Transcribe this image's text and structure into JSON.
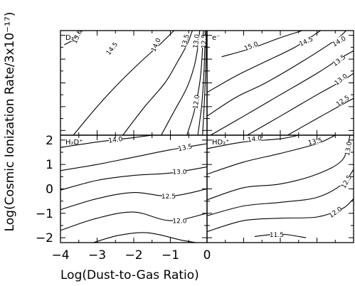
{
  "chart_data": {
    "type": "contour",
    "xlabel": "Log(Dust-to-Gas Ratio)",
    "ylabel": "Log(Cosmic Ionization Rate/3x10⁻¹⁷)",
    "xlim": [
      -4,
      0
    ],
    "ylim": [
      -2.2,
      2.2
    ],
    "xticks": [
      "−4",
      "−3",
      "−2",
      "−1",
      "0"
    ],
    "yticks": [
      "−2",
      "−1",
      "0",
      "1",
      "2"
    ],
    "layout": "2x2 grid, shared axes",
    "panels": [
      {
        "id": "D3plus",
        "position": "top-left",
        "species_label": "D₃⁺",
        "contours": [
          {
            "level": "15.0",
            "points": [
              [
                -3.9,
                1.6
              ],
              [
                -3.6,
                1.85
              ],
              [
                -3.4,
                2.2
              ]
            ],
            "label_at": [
              -3.55,
              1.95
            ],
            "label_angle": -65
          },
          {
            "level": "14.5",
            "points": [
              [
                -3.65,
                -2.2
              ],
              [
                -3.0,
                -1.0
              ],
              [
                -2.4,
                0.0
              ],
              [
                -1.8,
                0.9
              ],
              [
                -1.3,
                1.6
              ],
              [
                -0.9,
                2.2
              ]
            ],
            "label_at": [
              -2.6,
              1.45
            ],
            "label_angle": -52
          },
          {
            "level": "14.0",
            "points": [
              [
                -2.3,
                -2.2
              ],
              [
                -1.7,
                -1.0
              ],
              [
                -1.15,
                0.0
              ],
              [
                -0.8,
                0.9
              ],
              [
                -0.55,
                1.6
              ],
              [
                -0.4,
                2.2
              ]
            ],
            "label_at": [
              -1.4,
              1.6
            ],
            "label_angle": -65
          },
          {
            "level": "13.5",
            "points": [
              [
                -1.25,
                -2.2
              ],
              [
                -0.9,
                -1.2
              ],
              [
                -0.55,
                -0.2
              ],
              [
                -0.35,
                0.7
              ],
              [
                -0.25,
                1.5
              ],
              [
                -0.2,
                2.2
              ]
            ],
            "label_at": [
              -0.6,
              1.75
            ],
            "label_angle": -75
          },
          {
            "level": "13.0",
            "points": [
              [
                -0.55,
                -2.2
              ],
              [
                -0.35,
                -1.2
              ],
              [
                -0.2,
                0.0
              ],
              [
                -0.14,
                1.0
              ],
              [
                -0.1,
                2.2
              ]
            ],
            "label_at": [
              -0.3,
              1.75
            ],
            "label_angle": -82
          },
          {
            "level": "12.5",
            "points": [
              [
                -0.25,
                -2.2
              ],
              [
                -0.15,
                -1.0
              ],
              [
                -0.1,
                0.0
              ],
              [
                -0.07,
                1.0
              ],
              [
                -0.05,
                2.2
              ]
            ],
            "label_at": [
              -0.09,
              1.75
            ],
            "label_angle": -88
          },
          {
            "level": "12.0",
            "points": [
              [
                -0.12,
                -2.2
              ],
              [
                -0.08,
                -1.0
              ],
              [
                -0.05,
                0.0
              ],
              [
                -0.03,
                1.0
              ],
              [
                -0.02,
                2.2
              ]
            ],
            "label_at": [
              -0.3,
              -0.8
            ],
            "label_angle": -82
          }
        ]
      },
      {
        "id": "electron",
        "position": "top-right",
        "species_label": "e⁻",
        "contours": [
          {
            "level": "15.0",
            "points": [
              [
                -3.6,
                1.1
              ],
              [
                -2.8,
                1.45
              ],
              [
                -2.0,
                1.9
              ],
              [
                -1.4,
                2.2
              ]
            ],
            "label_at": [
              -2.8,
              1.55
            ],
            "label_angle": -22
          },
          {
            "level": "14.5",
            "points": [
              [
                -4.0,
                -0.4
              ],
              [
                -3.2,
                0.3
              ],
              [
                -2.4,
                0.9
              ],
              [
                -1.6,
                1.5
              ],
              [
                -0.9,
                2.2
              ]
            ],
            "label_at": [
              -1.3,
              1.75
            ],
            "label_angle": -25
          },
          {
            "level": "14.0",
            "points": [
              [
                -4.0,
                -1.4
              ],
              [
                -3.2,
                -0.6
              ],
              [
                -2.4,
                0.0
              ],
              [
                -1.4,
                0.9
              ],
              [
                -0.5,
                1.8
              ],
              [
                -0.2,
                2.2
              ]
            ],
            "label_at": [
              -0.4,
              1.75
            ],
            "label_angle": -30
          },
          {
            "level": "13.5",
            "points": [
              [
                -3.9,
                -2.2
              ],
              [
                -3.0,
                -1.4
              ],
              [
                -2.0,
                -0.5
              ],
              [
                -1.0,
                0.4
              ],
              [
                -0.4,
                1.0
              ],
              [
                0.0,
                1.35
              ]
            ],
            "label_at": [
              -0.4,
              0.95
            ],
            "label_angle": -38
          },
          {
            "level": "13.0",
            "points": [
              [
                -2.9,
                -2.2
              ],
              [
                -2.0,
                -1.4
              ],
              [
                -1.0,
                -0.5
              ],
              [
                -0.3,
                0.1
              ],
              [
                0.0,
                0.4
              ]
            ],
            "label_at": [
              -0.35,
              0.15
            ],
            "label_angle": -38
          },
          {
            "level": "12.5",
            "points": [
              [
                -1.8,
                -2.2
              ],
              [
                -1.0,
                -1.5
              ],
              [
                -0.3,
                -0.9
              ],
              [
                0.0,
                -0.65
              ]
            ],
            "label_at": [
              -0.3,
              -0.75
            ],
            "label_angle": -35
          }
        ]
      },
      {
        "id": "H2Dplus",
        "position": "bottom-left",
        "species_label": "H₂D⁺",
        "contours": [
          {
            "level": "14.0",
            "points": [
              [
                -4.0,
                1.7
              ],
              [
                -3.0,
                1.92
              ],
              [
                -2.0,
                2.1
              ],
              [
                -1.5,
                2.2
              ]
            ],
            "label_at": [
              -2.5,
              2.02
            ],
            "label_angle": -8
          },
          {
            "level": "13.5",
            "points": [
              [
                -4.0,
                0.75
              ],
              [
                -3.0,
                1.0
              ],
              [
                -2.0,
                1.3
              ],
              [
                -1.0,
                1.6
              ],
              [
                0.0,
                1.85
              ]
            ],
            "label_at": [
              -0.6,
              1.7
            ],
            "label_angle": -12
          },
          {
            "level": "13.0",
            "points": [
              [
                -4.0,
                -0.05
              ],
              [
                -3.0,
                0.35
              ],
              [
                -2.0,
                0.55
              ],
              [
                -1.0,
                0.65
              ],
              [
                0.0,
                0.9
              ]
            ],
            "label_at": [
              -0.75,
              0.7
            ],
            "label_angle": 0
          },
          {
            "level": "12.5",
            "points": [
              [
                -4.0,
                -0.85
              ],
              [
                -3.0,
                -0.4
              ],
              [
                -2.0,
                -0.15
              ],
              [
                -1.0,
                -0.3
              ],
              [
                0.0,
                0.0
              ]
            ],
            "label_at": [
              -1.05,
              -0.3
            ],
            "label_angle": 0
          },
          {
            "level": "12.0",
            "points": [
              [
                -4.0,
                -1.7
              ],
              [
                -3.0,
                -1.2
              ],
              [
                -2.0,
                -0.95
              ],
              [
                -1.0,
                -1.3
              ],
              [
                0.0,
                -1.0
              ]
            ],
            "label_at": [
              -0.75,
              -1.3
            ],
            "label_angle": 0
          },
          {
            "level": "",
            "points": [
              [
                -3.1,
                -2.2
              ],
              [
                -2.4,
                -1.9
              ],
              [
                -1.6,
                -1.8
              ],
              [
                -0.7,
                -2.1
              ],
              [
                -0.3,
                -2.2
              ]
            ],
            "label_at": null,
            "label_angle": 0
          }
        ]
      },
      {
        "id": "HD2plus",
        "position": "bottom-right",
        "species_label": "HD₂⁺",
        "contours": [
          {
            "level": "14.0",
            "points": [
              [
                -4.0,
                1.65
              ],
              [
                -3.0,
                1.92
              ],
              [
                -2.0,
                2.05
              ],
              [
                -1.5,
                2.2
              ]
            ],
            "label_at": [
              -2.7,
              2.05
            ],
            "label_angle": -8
          },
          {
            "level": "13.5",
            "points": [
              [
                -4.0,
                0.6
              ],
              [
                -3.0,
                1.1
              ],
              [
                -2.0,
                1.45
              ],
              [
                -1.0,
                1.85
              ],
              [
                -0.5,
                2.2
              ]
            ],
            "label_at": [
              -1.05,
              1.95
            ],
            "label_angle": -12
          },
          {
            "level": "13.0",
            "points": [
              [
                -4.0,
                -0.45
              ],
              [
                -3.0,
                0.05
              ],
              [
                -2.0,
                0.2
              ],
              [
                -1.0,
                0.6
              ],
              [
                -0.3,
                1.2
              ],
              [
                -0.1,
                2.2
              ]
            ],
            "label_at": [
              -0.15,
              1.65
            ],
            "label_angle": -80
          },
          {
            "level": "12.5",
            "points": [
              [
                -4.0,
                -1.1
              ],
              [
                -3.0,
                -0.7
              ],
              [
                -2.0,
                -0.55
              ],
              [
                -1.0,
                -0.35
              ],
              [
                -0.3,
                0.2
              ],
              [
                0.0,
                0.8
              ]
            ],
            "label_at": [
              -0.2,
              0.3
            ],
            "label_angle": -60
          },
          {
            "level": "12.0",
            "points": [
              [
                -4.0,
                -1.75
              ],
              [
                -3.0,
                -1.3
              ],
              [
                -2.0,
                -1.2
              ],
              [
                -1.0,
                -1.15
              ],
              [
                -0.3,
                -0.8
              ],
              [
                0.0,
                -0.4
              ]
            ],
            "label_at": [
              -0.5,
              -0.95
            ],
            "label_angle": -35
          },
          {
            "level": "11.5",
            "points": [
              [
                -2.7,
                -1.95
              ],
              [
                -2.0,
                -1.85
              ],
              [
                -1.3,
                -2.0
              ]
            ],
            "label_at": [
              -2.1,
              -1.88
            ],
            "label_angle": 0
          }
        ]
      }
    ]
  }
}
